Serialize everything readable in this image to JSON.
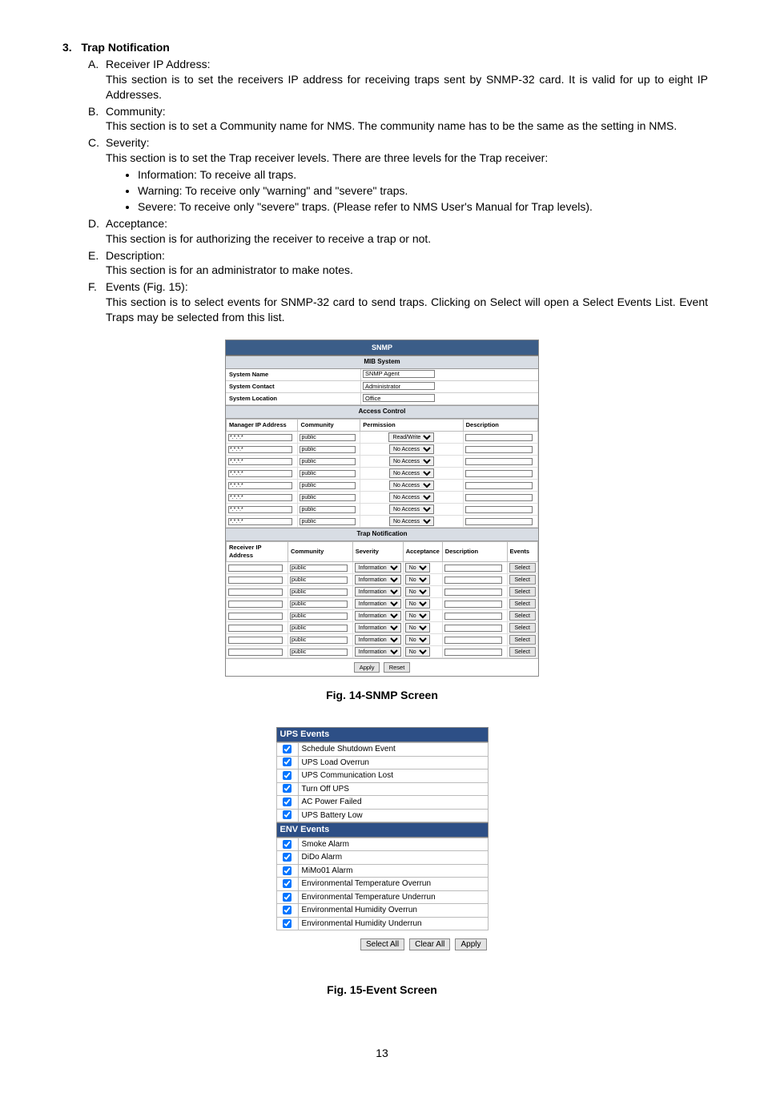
{
  "section": {
    "number": "3.",
    "title": "Trap Notification"
  },
  "items": {
    "A": {
      "letter": "A.",
      "title": "Receiver IP Address:",
      "body": "This section is to set the receivers IP address for receiving traps sent by SNMP-32 card.  It is valid for up to eight IP Addresses."
    },
    "B": {
      "letter": "B.",
      "title": "Community:",
      "body": "This section is to set a Community name for NMS. The community name has to be the same as the setting in NMS."
    },
    "C": {
      "letter": "C.",
      "title": "Severity:",
      "body": "This section is to set the Trap receiver levels.  There are three levels for the Trap receiver:",
      "bullets": [
        "Information: To receive all traps.",
        "Warning: To receive only \"warning\" and \"severe\" traps.",
        "Severe: To receive only \"severe\" traps. (Please refer to NMS User's Manual for Trap levels)."
      ]
    },
    "D": {
      "letter": "D.",
      "title": "Acceptance:",
      "body": "This section is for authorizing the receiver to receive a trap or not."
    },
    "E": {
      "letter": "E.",
      "title": "Description:",
      "body": "This section is for an administrator to make notes."
    },
    "F": {
      "letter": "F.",
      "title": "Events (Fig. 15):",
      "body": "This section is to select events for SNMP-32 card to send traps.  Clicking on Select will open a Select Events List.  Event Traps may be selected from this list."
    }
  },
  "fig14_caption": "Fig. 14-SNMP Screen",
  "fig15_caption": "Fig. 15-Event Screen",
  "page_number": "13",
  "snmp": {
    "title": "SNMP",
    "mib_title": "MIB System",
    "mib_rows": [
      {
        "label": "System Name",
        "value": "SNMP Agent"
      },
      {
        "label": "System Contact",
        "value": "Administrator"
      },
      {
        "label": "System Location",
        "value": "Office"
      }
    ],
    "access_title": "Access Control",
    "access_headers": [
      "Manager IP Address",
      "Community",
      "Permission",
      "Description"
    ],
    "access_rows": [
      {
        "ip": "*.*.*.*",
        "community": "public",
        "permission": "Read/Write"
      },
      {
        "ip": "*.*.*.*",
        "community": "public",
        "permission": "No Access"
      },
      {
        "ip": "*.*.*.*",
        "community": "public",
        "permission": "No Access"
      },
      {
        "ip": "*.*.*.*",
        "community": "public",
        "permission": "No Access"
      },
      {
        "ip": "*.*.*.*",
        "community": "public",
        "permission": "No Access"
      },
      {
        "ip": "*.*.*.*",
        "community": "public",
        "permission": "No Access"
      },
      {
        "ip": "*.*.*.*",
        "community": "public",
        "permission": "No Access"
      },
      {
        "ip": "*.*.*.*",
        "community": "public",
        "permission": "No Access"
      }
    ],
    "trap_title": "Trap Notification",
    "trap_headers": [
      "Receiver IP Address",
      "Community",
      "Severity",
      "Acceptance",
      "Description",
      "Events"
    ],
    "trap_row": {
      "community": "public",
      "severity": "Information",
      "acceptance": "No",
      "select_label": "Select"
    },
    "trap_row_count": 8,
    "footer": {
      "apply": "Apply",
      "reset": "Reset"
    }
  },
  "events": {
    "ups_title": "UPS Events",
    "ups_list": [
      "Schedule Shutdown Event",
      "UPS Load Overrun",
      "UPS Communication Lost",
      "Turn Off UPS",
      "AC Power Failed",
      "UPS Battery Low"
    ],
    "env_title": "ENV Events",
    "env_list": [
      "Smoke Alarm",
      "DiDo Alarm",
      "MiMo01 Alarm",
      "Environmental Temperature Overrun",
      "Environmental Temperature Underrun",
      "Environmental Humidity Overrun",
      "Environmental Humidity Underrun"
    ],
    "buttons": {
      "select_all": "Select All",
      "clear_all": "Clear All",
      "apply": "Apply"
    }
  }
}
